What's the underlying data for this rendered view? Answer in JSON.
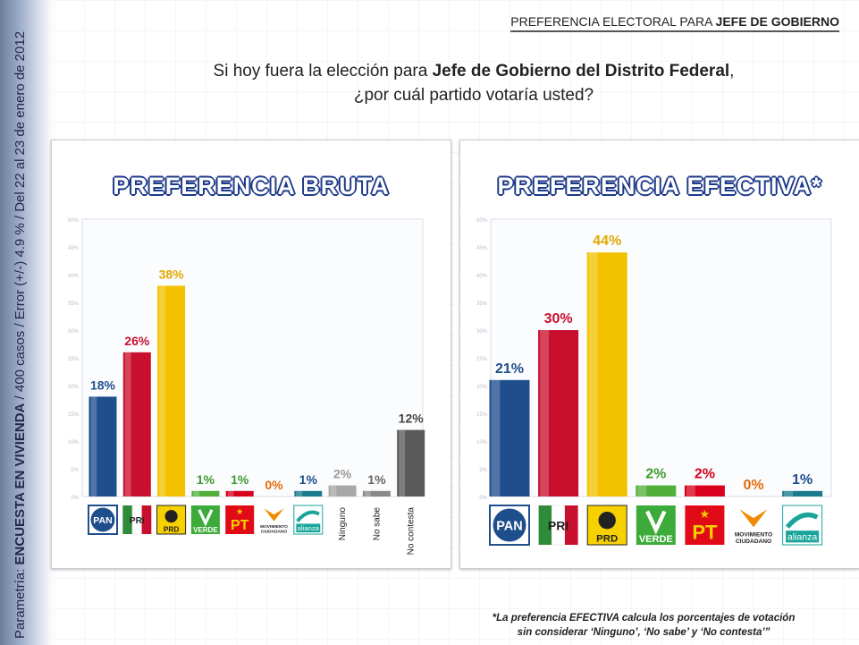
{
  "header": {
    "prefix": "PREFERENCIA ELECTORAL PARA ",
    "bold": "JEFE DE GOBIERNO"
  },
  "question": {
    "line1_pre": "Si hoy fuera la elección para ",
    "line1_bold": "Jefe de Gobierno del Distrito Federal",
    "line1_post": ",",
    "line2": "¿por cuál partido votaría usted?"
  },
  "side": {
    "pre": "Parametría: ",
    "bold": "ENCUESTA EN VIVIENDA",
    "post": " / 400 casos / Error (+/-) 4.9 % / Del 22 al 23 de enero de 2012"
  },
  "colors": {
    "PAN": "#1f4e8c",
    "PRI": "#c8102e",
    "PRD": "#f2c200",
    "VERDE": "#3e9b2f",
    "PT": "#d9001b",
    "MC": "#e36c09",
    "ALIANZA": "#1b7b8c",
    "GRAY": "#9a9a9a",
    "DARK": "#555555"
  },
  "chart_data": [
    {
      "type": "bar",
      "title": "PREFERENCIA BRUTA",
      "categories": [
        "PAN",
        "PRI",
        "PRD",
        "VERDE",
        "PT",
        "MOVIMIENTO CIUDADANO",
        "alianza",
        "Ninguno",
        "No sabe",
        "No contesta"
      ],
      "values": [
        18,
        26,
        38,
        1,
        1,
        0,
        1,
        2,
        1,
        12
      ],
      "labels": [
        "18%",
        "26%",
        "38%",
        "1%",
        "1%",
        "0%",
        "1%",
        "2%",
        "1%",
        "12%"
      ],
      "bar_colors": [
        "#1f4e8c",
        "#c8102e",
        "#f2c200",
        "#52b03a",
        "#d9001b",
        "#e36c09",
        "#1b7b8c",
        "#a8a8a8",
        "#8a8a8a",
        "#5a5a5a"
      ],
      "label_colors": [
        "#1f4e8c",
        "#c8102e",
        "#e0a800",
        "#3e9b2f",
        "#3e9b2f",
        "#e36c09",
        "#1f4e8c",
        "#9a9a9a",
        "#666666",
        "#444444"
      ],
      "yticks": [
        "0%",
        "5%",
        "10%",
        "15%",
        "20%",
        "25%",
        "30%",
        "35%",
        "40%",
        "45%",
        "50%"
      ],
      "ylim": [
        0,
        50
      ],
      "grid": false
    },
    {
      "type": "bar",
      "title": "PREFERENCIA EFECTIVA*",
      "categories": [
        "PAN",
        "PRI",
        "PRD",
        "VERDE",
        "PT",
        "MOVIMIENTO CIUDADANO",
        "alianza"
      ],
      "values": [
        21,
        30,
        44,
        2,
        2,
        0,
        1
      ],
      "labels": [
        "21%",
        "30%",
        "44%",
        "2%",
        "2%",
        "0%",
        "1%"
      ],
      "bar_colors": [
        "#1f4e8c",
        "#c8102e",
        "#f2c200",
        "#52b03a",
        "#d9001b",
        "#e36c09",
        "#1b7b8c"
      ],
      "label_colors": [
        "#1f4e8c",
        "#c8102e",
        "#e0a800",
        "#3e9b2f",
        "#d9001b",
        "#e36c09",
        "#1f4e8c"
      ],
      "yticks": [
        "0%",
        "5%",
        "10%",
        "15%",
        "20%",
        "25%",
        "30%",
        "35%",
        "40%",
        "45%",
        "50%"
      ],
      "ylim": [
        0,
        50
      ],
      "grid": false
    }
  ],
  "logos": {
    "PAN": "PAN",
    "PRI": "PRI",
    "PRD": "PRD",
    "VERDE": "VERDE",
    "PT": "PT",
    "MC_line1": "MOVIMIENTO",
    "MC_line2": "CIUDADANO",
    "ALIANZA": "alianza"
  },
  "footnote": {
    "line1": "*La preferencia EFECTIVA calcula los porcentajes de votación",
    "line2": "sin considerar ‘Ninguno’, ‘No sabe’ y ‘No contesta’”"
  }
}
